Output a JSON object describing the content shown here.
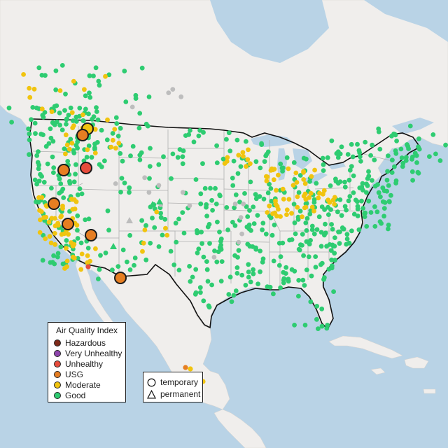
{
  "legend": {
    "title": "Air Quality Index",
    "categories": [
      {
        "label": "Hazardous",
        "color": "#7e2a1a"
      },
      {
        "label": "Very Unhealthy",
        "color": "#8e44ad"
      },
      {
        "label": "Unhealthy",
        "color": "#e74c3c"
      },
      {
        "label": "USG",
        "color": "#e67e22"
      },
      {
        "label": "Moderate",
        "color": "#f1c40f"
      },
      {
        "label": "Good",
        "color": "#2ecc71"
      }
    ]
  },
  "monitor_types": {
    "temporary": "temporary",
    "permanent": "permanent"
  },
  "colors": {
    "land": "#f0eeec",
    "water": "#b9d3e6",
    "border": "#111111",
    "state_lines": "#b0b0b0",
    "no_data": "#bdbdbd"
  }
}
